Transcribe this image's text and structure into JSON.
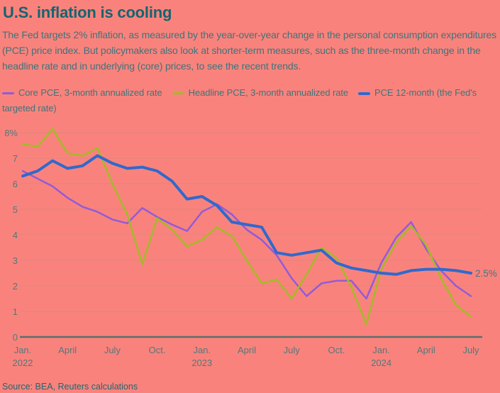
{
  "title": "U.S. inflation is cooling",
  "subtitle": "The Fed targets 2% inflation, as measured by the year-over-year change in the personal consumption expenditures (PCE) price index. But policymakers also look at shorter-term measures, such as the three-month change in the headline rate and in underlying (core) prices, to see the recent trends.",
  "source": "Source: BEA, Reuters calculations",
  "colors": {
    "background": "#f9837c",
    "title_text": "#156470",
    "body_text": "#40737b",
    "axis_text": "#54777c",
    "gridline": "#e4837e",
    "axis_line": "#5e6e6b",
    "core_pce": "#925bd8",
    "headline_pce": "#a3ba28",
    "pce_12m": "#3069cd",
    "annotation_text": "#4c757b"
  },
  "legend": [
    {
      "label": "Core PCE, 3-month annualized rate",
      "color": "#925bd8",
      "thick": false
    },
    {
      "label": "Headline PCE, 3-month annualized rate",
      "color": "#a3ba28",
      "thick": false
    },
    {
      "label": "PCE 12-month (the Fed's targeted rate)",
      "color": "#3069cd",
      "thick": true
    }
  ],
  "chart_data": {
    "type": "line",
    "title": "U.S. inflation is cooling",
    "ylim": [
      0,
      8
    ],
    "grid": "horizontal",
    "legend_position": "top",
    "x_months": [
      "Jan. 2022",
      "Feb. 2022",
      "March 2022",
      "April 2022",
      "May 2022",
      "June 2022",
      "July 2022",
      "Aug. 2022",
      "Sept. 2022",
      "Oct. 2022",
      "Nov. 2022",
      "Dec. 2022",
      "Jan. 2023",
      "Feb. 2023",
      "March 2023",
      "April 2023",
      "May 2023",
      "June 2023",
      "July 2023",
      "Aug. 2023",
      "Sept. 2023",
      "Oct. 2023",
      "Nov. 2023",
      "Dec. 2023",
      "Jan. 2024",
      "Feb. 2024",
      "March 2024",
      "April 2024",
      "May 2024",
      "June 2024",
      "July 2024"
    ],
    "series": [
      {
        "name": "Core PCE, 3-month annualized rate",
        "color": "#925bd8",
        "width": 2.5,
        "values": [
          6.5,
          6.2,
          5.9,
          5.45,
          5.1,
          4.9,
          4.6,
          4.45,
          5.05,
          4.7,
          4.4,
          4.15,
          4.9,
          5.2,
          4.8,
          4.2,
          3.8,
          3.2,
          2.3,
          1.6,
          2.1,
          2.2,
          2.2,
          1.5,
          2.9,
          3.9,
          4.5,
          3.45,
          2.6,
          2.0,
          1.6
        ]
      },
      {
        "name": "Headline PCE, 3-month annualized rate",
        "color": "#a3ba28",
        "width": 2.5,
        "values": [
          7.55,
          7.45,
          8.15,
          7.2,
          7.1,
          7.4,
          6.0,
          4.8,
          2.85,
          4.65,
          4.2,
          3.55,
          3.8,
          4.3,
          3.95,
          3.0,
          2.1,
          2.25,
          1.5,
          2.45,
          3.5,
          3.1,
          1.95,
          0.5,
          2.65,
          3.7,
          4.35,
          3.6,
          2.3,
          1.25,
          0.8
        ]
      },
      {
        "name": "PCE 12-month (the Fed's targeted rate)",
        "color": "#3069cd",
        "width": 4,
        "values": [
          6.3,
          6.5,
          6.9,
          6.6,
          6.7,
          7.1,
          6.8,
          6.6,
          6.65,
          6.5,
          6.1,
          5.4,
          5.5,
          5.15,
          4.5,
          4.4,
          4.3,
          3.3,
          3.2,
          3.3,
          3.4,
          2.9,
          2.7,
          2.6,
          2.5,
          2.45,
          2.6,
          2.65,
          2.65,
          2.6,
          2.5
        ]
      }
    ],
    "yticks": [
      {
        "value": 0,
        "label": "0"
      },
      {
        "value": 1,
        "label": "1"
      },
      {
        "value": 2,
        "label": "2"
      },
      {
        "value": 3,
        "label": "3"
      },
      {
        "value": 4,
        "label": "4"
      },
      {
        "value": 5,
        "label": "5"
      },
      {
        "value": 6,
        "label": "6"
      },
      {
        "value": 7,
        "label": "7"
      },
      {
        "value": 8,
        "label": "8%"
      }
    ],
    "xticks": [
      {
        "index": 0,
        "label": "Jan.",
        "year": "2022"
      },
      {
        "index": 3,
        "label": "April"
      },
      {
        "index": 6,
        "label": "July"
      },
      {
        "index": 9,
        "label": "Oct."
      },
      {
        "index": 12,
        "label": "Jan.",
        "year": "2023"
      },
      {
        "index": 15,
        "label": "April"
      },
      {
        "index": 18,
        "label": "July"
      },
      {
        "index": 21,
        "label": "Oct."
      },
      {
        "index": 24,
        "label": "Jan.",
        "year": "2024"
      },
      {
        "index": 27,
        "label": "April"
      },
      {
        "index": 30,
        "label": "July"
      }
    ],
    "end_annotation": {
      "text": "2.5%",
      "value": 2.5
    }
  }
}
